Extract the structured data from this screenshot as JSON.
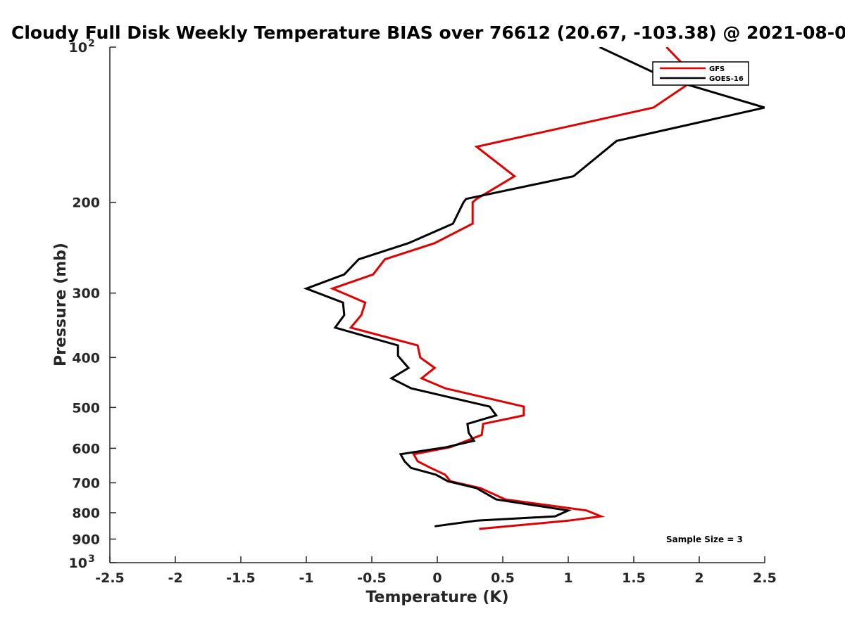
{
  "chart_data": {
    "type": "line",
    "title": "Cloudy Full Disk Weekly Temperature BIAS over 76612 (20.67, -103.38) @ 2021-08-0",
    "xlabel": "Temperature (K)",
    "ylabel": "Pressure (mb)",
    "xlim": [
      -2.5,
      2.5
    ],
    "ylim": [
      100,
      1000
    ],
    "y_scale": "log",
    "y_reversed": true,
    "grid": false,
    "legend_position": "top-right",
    "x_ticks": [
      "-2.5",
      "-2",
      "-1.5",
      "-1",
      "-0.5",
      "0",
      "0.5",
      "1",
      "1.5",
      "2",
      "2.5"
    ],
    "y_ticks": [
      {
        "value": 100,
        "label": "10",
        "exp": "2"
      },
      {
        "value": 200,
        "label": "200"
      },
      {
        "value": 300,
        "label": "300"
      },
      {
        "value": 400,
        "label": "400"
      },
      {
        "value": 500,
        "label": "500"
      },
      {
        "value": 600,
        "label": "600"
      },
      {
        "value": 700,
        "label": "700"
      },
      {
        "value": 800,
        "label": "800"
      },
      {
        "value": 900,
        "label": "900"
      },
      {
        "value": 1000,
        "label": "10",
        "exp": "3"
      }
    ],
    "annotation": "Sample Size = 3",
    "series": [
      {
        "name": "GFS",
        "color": "#e00000",
        "points": [
          [
            1.75,
            100
          ],
          [
            1.98,
            115
          ],
          [
            1.65,
            131
          ],
          [
            0.3,
            156
          ],
          [
            0.59,
            178
          ],
          [
            0.3,
            197
          ],
          [
            0.27,
            200
          ],
          [
            0.27,
            220
          ],
          [
            -0.02,
            240
          ],
          [
            -0.4,
            258
          ],
          [
            -0.49,
            276
          ],
          [
            -0.8,
            294
          ],
          [
            -0.55,
            313
          ],
          [
            -0.58,
            331
          ],
          [
            -0.66,
            350
          ],
          [
            -0.15,
            379
          ],
          [
            -0.13,
            400
          ],
          [
            -0.02,
            419
          ],
          [
            -0.12,
            439
          ],
          [
            0.06,
            459
          ],
          [
            0.66,
            498
          ],
          [
            0.66,
            518
          ],
          [
            0.35,
            538
          ],
          [
            0.34,
            565
          ],
          [
            0.1,
            597
          ],
          [
            -0.18,
            616
          ],
          [
            -0.15,
            636
          ],
          [
            -0.05,
            655
          ],
          [
            0.06,
            675
          ],
          [
            0.1,
            695
          ],
          [
            0.33,
            717
          ],
          [
            0.52,
            754
          ],
          [
            1.14,
            792
          ],
          [
            1.25,
            813
          ],
          [
            1.0,
            829
          ],
          [
            0.32,
            860
          ]
        ]
      },
      {
        "name": "GOES-16",
        "color": "#000000",
        "points": [
          [
            1.24,
            100
          ],
          [
            1.75,
            115
          ],
          [
            2.5,
            131
          ],
          [
            1.37,
            152
          ],
          [
            1.04,
            178
          ],
          [
            0.22,
            197
          ],
          [
            0.2,
            200
          ],
          [
            0.12,
            220
          ],
          [
            -0.22,
            240
          ],
          [
            -0.6,
            258
          ],
          [
            -0.71,
            276
          ],
          [
            -1.0,
            294
          ],
          [
            -0.72,
            313
          ],
          [
            -0.71,
            331
          ],
          [
            -0.78,
            350
          ],
          [
            -0.3,
            379
          ],
          [
            -0.3,
            397
          ],
          [
            -0.22,
            419
          ],
          [
            -0.35,
            439
          ],
          [
            -0.2,
            459
          ],
          [
            0.4,
            498
          ],
          [
            0.45,
            518
          ],
          [
            0.23,
            538
          ],
          [
            0.24,
            560
          ],
          [
            0.28,
            580
          ],
          [
            0.07,
            597
          ],
          [
            -0.28,
            616
          ],
          [
            -0.25,
            636
          ],
          [
            -0.2,
            655
          ],
          [
            -0.01,
            675
          ],
          [
            0.08,
            695
          ],
          [
            0.3,
            717
          ],
          [
            0.45,
            754
          ],
          [
            1.0,
            792
          ],
          [
            0.9,
            813
          ],
          [
            0.3,
            829
          ],
          [
            -0.02,
            850
          ]
        ]
      }
    ]
  }
}
